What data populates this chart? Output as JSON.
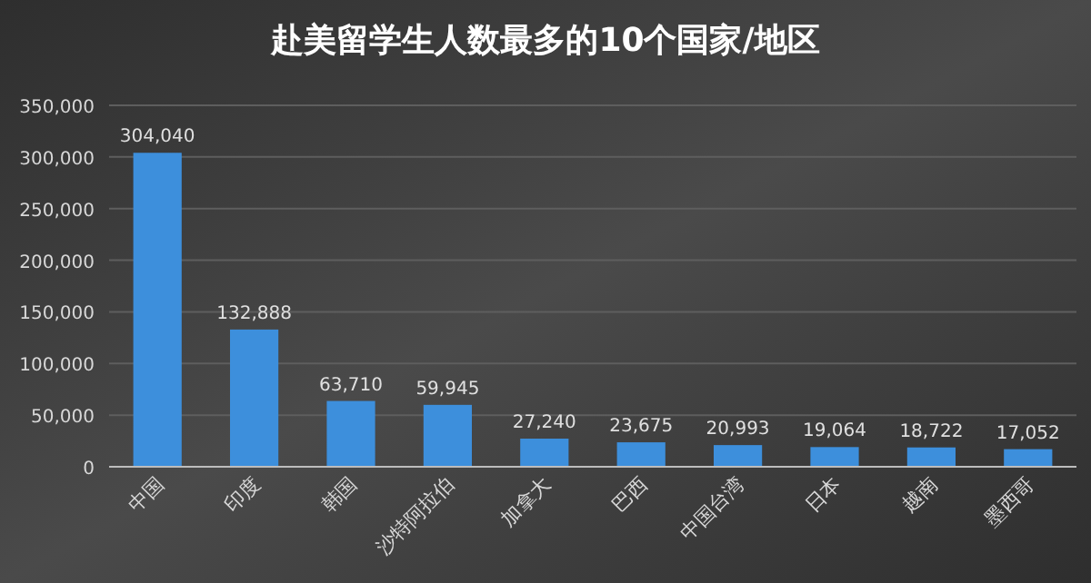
{
  "chart_data": {
    "type": "bar",
    "title": "赴美留学生人数最多的10个国家/地区",
    "categories": [
      "中国",
      "印度",
      "韩国",
      "沙特阿拉伯",
      "加拿大",
      "巴西",
      "中国台湾",
      "日本",
      "越南",
      "墨西哥"
    ],
    "values": [
      304040,
      132888,
      63710,
      59945,
      27240,
      23675,
      20993,
      19064,
      18722,
      17052
    ],
    "value_labels": [
      "304,040",
      "132,888",
      "63,710",
      "59,945",
      "27,240",
      "23,675",
      "20,993",
      "19,064",
      "18,722",
      "17,052"
    ],
    "color": "#3d8fdc",
    "ylim": [
      0,
      350000
    ],
    "yticks": [
      0,
      {
        "value": 50000,
        "label": "50,000"
      },
      {
        "value": 100000,
        "label": "100,000"
      },
      {
        "value": 150000,
        "label": "150,000"
      },
      {
        "value": 200000,
        "label": "200,000"
      },
      {
        "value": 250000,
        "label": "250,000"
      },
      {
        "value": 300000,
        "label": "300,000"
      },
      {
        "value": 350000,
        "label": "350,000"
      }
    ],
    "grid": "y"
  }
}
